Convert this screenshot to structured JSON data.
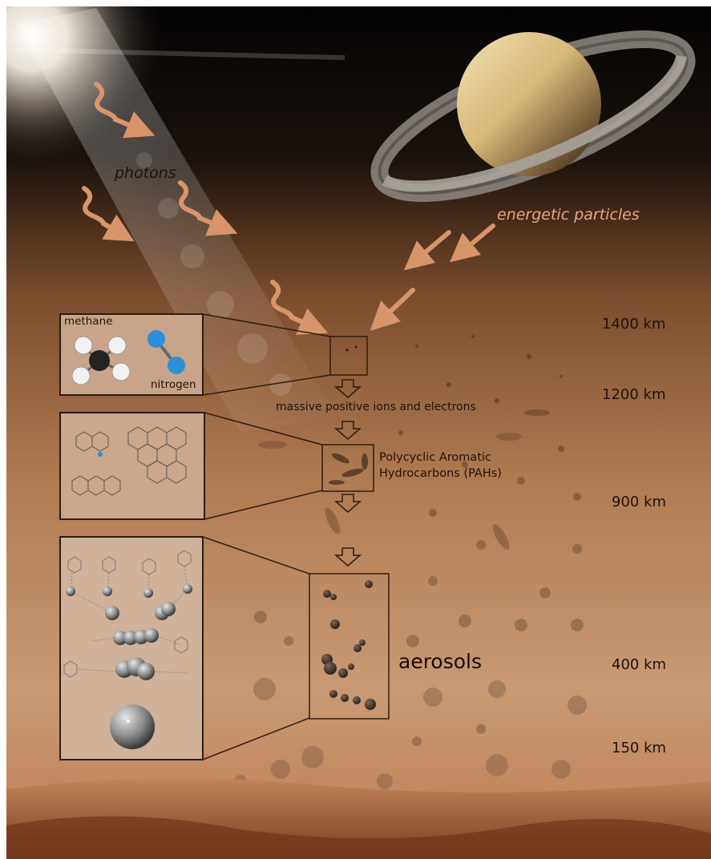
{
  "labels": {
    "photons": "photons",
    "energetic_particles": "energetic particles",
    "methane": "methane",
    "nitrogen": "nitrogen",
    "ions_electrons": "massive positive ions and electrons",
    "pah_line1": "Polycyclic Aromatic",
    "pah_line2": "Hydrocarbons (PAHs)",
    "aerosols": "aerosols"
  },
  "altitudes": [
    "1400 km",
    "1200 km",
    "900 km",
    "400 km",
    "150 km"
  ],
  "colors": {
    "sky_top": "#050403",
    "haze_mid": "#8a5a35",
    "haze_low": "#c8936a",
    "ground": "#8a4e2a",
    "arrow": "#d9956a",
    "box_border": "#2a1d14",
    "panel_fill": "#c9a58a"
  }
}
